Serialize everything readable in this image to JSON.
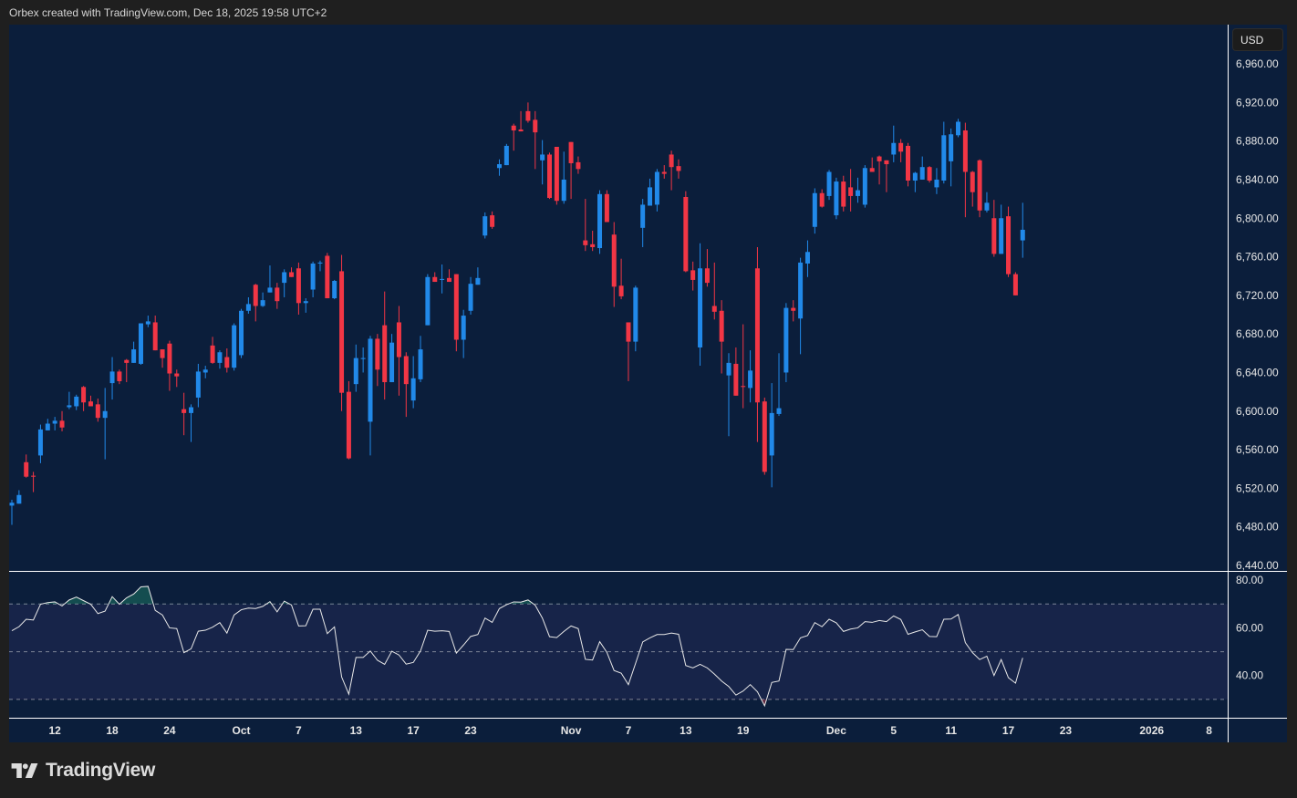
{
  "header": {
    "caption": "Orbex created with TradingView.com, Dec 18, 2025 19:58 UTC+2"
  },
  "currency_label": "USD",
  "logo": {
    "text": "TradingView"
  },
  "colors": {
    "up": "#2189e9",
    "down": "#f23645",
    "background": "#0b1e3b",
    "rsi_band": "#172449",
    "rsi_line": "#e8e8e8"
  },
  "chart_data": {
    "type": "candlestick",
    "title": "",
    "ylim": [
      6434.3,
      7000.7
    ],
    "price_axis": {
      "ticks": [
        "6,960.00",
        "6,920.00",
        "6,880.00",
        "6,840.00",
        "6,800.00",
        "6,760.00",
        "6,720.00",
        "6,680.00",
        "6,640.00",
        "6,600.00",
        "6,560.00",
        "6,520.00",
        "6,480.00",
        "6,440.00"
      ],
      "tick_values": [
        6960,
        6920,
        6880,
        6840,
        6800,
        6760,
        6720,
        6680,
        6640,
        6600,
        6560,
        6520,
        6480,
        6440
      ]
    },
    "time_axis": [
      {
        "label": "12",
        "bar": 7
      },
      {
        "label": "18",
        "bar": 15
      },
      {
        "label": "24",
        "bar": 23
      },
      {
        "label": "Oct",
        "bar": 33
      },
      {
        "label": "7",
        "bar": 41
      },
      {
        "label": "13",
        "bar": 49
      },
      {
        "label": "17",
        "bar": 57
      },
      {
        "label": "23",
        "bar": 65
      },
      {
        "label": "Nov",
        "bar": 79
      },
      {
        "label": "7",
        "bar": 87
      },
      {
        "label": "13",
        "bar": 95
      },
      {
        "label": "19",
        "bar": 103
      },
      {
        "label": "Dec",
        "bar": 116
      },
      {
        "label": "5",
        "bar": 124
      },
      {
        "label": "11",
        "bar": 132
      },
      {
        "label": "17",
        "bar": 140
      },
      {
        "label": "23",
        "bar": 148
      },
      {
        "label": "2026",
        "bar": 160
      },
      {
        "label": "8",
        "bar": 168
      }
    ],
    "ohlc_fields": [
      "open",
      "high",
      "low",
      "close"
    ],
    "candles": [
      [
        6502,
        6508,
        6482,
        6505
      ],
      [
        6504,
        6518,
        6504,
        6513
      ],
      [
        6547,
        6555,
        6531,
        6532
      ],
      [
        6533,
        6537,
        6516,
        6532
      ],
      [
        6554,
        6586,
        6546,
        6581
      ],
      [
        6580,
        6592,
        6580,
        6587
      ],
      [
        6587,
        6594,
        6580,
        6590
      ],
      [
        6590,
        6600,
        6579,
        6583
      ],
      [
        6604,
        6620,
        6602,
        6606
      ],
      [
        6605,
        6617,
        6601,
        6615
      ],
      [
        6625,
        6626,
        6600,
        6609
      ],
      [
        6610,
        6616,
        6605,
        6605
      ],
      [
        6607,
        6613,
        6589,
        6593
      ],
      [
        6593,
        6624,
        6550,
        6600
      ],
      [
        6629,
        6656,
        6612,
        6641
      ],
      [
        6641,
        6643,
        6628,
        6631
      ],
      [
        6653,
        6654,
        6630,
        6650
      ],
      [
        6650,
        6672,
        6650,
        6664
      ],
      [
        6649,
        6691,
        6648,
        6691
      ],
      [
        6690,
        6699,
        6687,
        6693
      ],
      [
        6692,
        6699,
        6663,
        6663
      ],
      [
        6664,
        6664,
        6645,
        6655
      ],
      [
        6670,
        6673,
        6621,
        6639
      ],
      [
        6639,
        6643,
        6625,
        6636
      ],
      [
        6602,
        6619,
        6575,
        6598
      ],
      [
        6598,
        6607,
        6568,
        6604
      ],
      [
        6614,
        6649,
        6604,
        6641
      ],
      [
        6640,
        6647,
        6634,
        6643
      ],
      [
        6668,
        6677,
        6649,
        6650
      ],
      [
        6650,
        6663,
        6644,
        6661
      ],
      [
        6656,
        6665,
        6640,
        6645
      ],
      [
        6645,
        6691,
        6642,
        6689
      ],
      [
        6658,
        6706,
        6655,
        6704
      ],
      [
        6704,
        6718,
        6701,
        6711
      ],
      [
        6731,
        6732,
        6693,
        6709
      ],
      [
        6709,
        6723,
        6708,
        6715
      ],
      [
        6723,
        6751,
        6723,
        6728
      ],
      [
        6728,
        6733,
        6706,
        6714
      ],
      [
        6733,
        6747,
        6718,
        6744
      ],
      [
        6744,
        6749,
        6739,
        6739
      ],
      [
        6748,
        6754,
        6700,
        6712
      ],
      [
        6712,
        6717,
        6702,
        6714
      ],
      [
        6726,
        6755,
        6718,
        6753
      ],
      [
        6753,
        6756,
        6745,
        6754
      ],
      [
        6761,
        6764,
        6717,
        6717
      ],
      [
        6717,
        6736,
        6716,
        6735
      ],
      [
        6745,
        6762,
        6600,
        6619
      ],
      [
        6620,
        6631,
        6550,
        6551
      ],
      [
        6628,
        6669,
        6620,
        6655
      ],
      [
        6654,
        6666,
        6640,
        6655
      ],
      [
        6589,
        6678,
        6554,
        6675
      ],
      [
        6675,
        6680,
        6626,
        6643
      ],
      [
        6689,
        6724,
        6612,
        6630
      ],
      [
        6630,
        6680,
        6630,
        6671
      ],
      [
        6692,
        6709,
        6616,
        6656
      ],
      [
        6657,
        6661,
        6594,
        6628
      ],
      [
        6611,
        6657,
        6603,
        6634
      ],
      [
        6633,
        6678,
        6630,
        6664
      ],
      [
        6689,
        6742,
        6689,
        6739
      ],
      [
        6739,
        6744,
        6734,
        6734
      ],
      [
        6736,
        6752,
        6722,
        6737
      ],
      [
        6738,
        6747,
        6734,
        6734
      ],
      [
        6742,
        6742,
        6662,
        6674
      ],
      [
        6674,
        6705,
        6655,
        6699
      ],
      [
        6704,
        6739,
        6700,
        6732
      ],
      [
        6731,
        6749,
        6731,
        6738
      ],
      [
        6782,
        6806,
        6779,
        6802
      ],
      [
        6803,
        6807,
        6789,
        6791
      ],
      [
        6852,
        6861,
        6844,
        6856
      ],
      [
        6855,
        6877,
        6855,
        6875
      ],
      [
        6896,
        6898,
        6870,
        6891
      ],
      [
        6892,
        6911,
        6890,
        6890
      ],
      [
        6911,
        6920,
        6899,
        6901
      ],
      [
        6902,
        6911,
        6851,
        6889
      ],
      [
        6860,
        6881,
        6835,
        6866
      ],
      [
        6866,
        6868,
        6820,
        6821
      ],
      [
        6874,
        6874,
        6814,
        6818
      ],
      [
        6818,
        6869,
        6815,
        6840
      ],
      [
        6879,
        6879,
        6820,
        6857
      ],
      [
        6858,
        6864,
        6846,
        6851
      ],
      [
        6777,
        6820,
        6766,
        6772
      ],
      [
        6773,
        6787,
        6766,
        6770
      ],
      [
        6769,
        6829,
        6763,
        6825
      ],
      [
        6825,
        6829,
        6796,
        6796
      ],
      [
        6783,
        6796,
        6708,
        6729
      ],
      [
        6730,
        6758,
        6716,
        6719
      ],
      [
        6692,
        6692,
        6631,
        6672
      ],
      [
        6672,
        6730,
        6662,
        6728
      ],
      [
        6790,
        6820,
        6770,
        6814
      ],
      [
        6813,
        6841,
        6813,
        6832
      ],
      [
        6814,
        6851,
        6807,
        6848
      ],
      [
        6848,
        6855,
        6841,
        6846
      ],
      [
        6866,
        6870,
        6829,
        6853
      ],
      [
        6854,
        6861,
        6841,
        6849
      ],
      [
        6822,
        6828,
        6744,
        6745
      ],
      [
        6746,
        6755,
        6725,
        6736
      ],
      [
        6666,
        6774,
        6647,
        6748
      ],
      [
        6748,
        6768,
        6729,
        6733
      ],
      [
        6709,
        6754,
        6695,
        6703
      ],
      [
        6704,
        6715,
        6639,
        6672
      ],
      [
        6637,
        6660,
        6574,
        6650
      ],
      [
        6649,
        6666,
        6616,
        6616
      ],
      [
        6626,
        6690,
        6603,
        6625
      ],
      [
        6624,
        6663,
        6609,
        6642
      ],
      [
        6748,
        6770,
        6568,
        6609
      ],
      [
        6610,
        6614,
        6534,
        6537
      ],
      [
        6554,
        6629,
        6521,
        6598
      ],
      [
        6597,
        6660,
        6595,
        6603
      ],
      [
        6640,
        6712,
        6630,
        6707
      ],
      [
        6707,
        6715,
        6693,
        6704
      ],
      [
        6696,
        6759,
        6659,
        6754
      ],
      [
        6753,
        6777,
        6739,
        6765
      ],
      [
        6791,
        6831,
        6784,
        6826
      ],
      [
        6826,
        6830,
        6811,
        6812
      ],
      [
        6823,
        6850,
        6819,
        6848
      ],
      [
        6803,
        6842,
        6799,
        6838
      ],
      [
        6838,
        6844,
        6807,
        6812
      ],
      [
        6832,
        6851,
        6807,
        6823
      ],
      [
        6823,
        6842,
        6816,
        6829
      ],
      [
        6814,
        6855,
        6811,
        6852
      ],
      [
        6852,
        6863,
        6848,
        6848
      ],
      [
        6864,
        6865,
        6835,
        6859
      ],
      [
        6860,
        6860,
        6827,
        6856
      ],
      [
        6866,
        6896,
        6858,
        6878
      ],
      [
        6878,
        6882,
        6858,
        6869
      ],
      [
        6875,
        6878,
        6833,
        6839
      ],
      [
        6839,
        6848,
        6827,
        6847
      ],
      [
        6840,
        6864,
        6840,
        6853
      ],
      [
        6853,
        6854,
        6837,
        6839
      ],
      [
        6832,
        6852,
        6825,
        6840
      ],
      [
        6839,
        6900,
        6836,
        6886
      ],
      [
        6859,
        6893,
        6833,
        6887
      ],
      [
        6886,
        6903,
        6884,
        6900
      ],
      [
        6891,
        6899,
        6801,
        6848
      ],
      [
        6848,
        6849,
        6812,
        6827
      ],
      [
        6860,
        6861,
        6801,
        6808
      ],
      [
        6808,
        6827,
        6806,
        6816
      ],
      [
        6800,
        6819,
        6760,
        6763
      ],
      [
        6763,
        6814,
        6763,
        6800
      ],
      [
        6802,
        6812,
        6739,
        6742
      ],
      [
        6742,
        6744,
        6720,
        6720
      ],
      [
        6777,
        6816,
        6759,
        6788
      ]
    ],
    "rsi": {
      "ylim": [
        22.3,
        83.5
      ],
      "ticks": [
        "80.00",
        "60.00",
        "40.00"
      ],
      "tick_values": [
        80,
        60,
        40
      ],
      "levels": [
        70,
        50,
        30
      ],
      "values": [
        58.8,
        60.5,
        63.6,
        63.3,
        69.9,
        70.6,
        70.9,
        69.2,
        71.7,
        72.9,
        71.4,
        69.9,
        66.0,
        67.0,
        73.1,
        69.9,
        72.6,
        74.2,
        77.2,
        77.4,
        67.3,
        65.4,
        60.0,
        59.7,
        49.6,
        51.2,
        58.6,
        59.0,
        60.3,
        62.2,
        57.8,
        65.4,
        67.6,
        68.3,
        68.1,
        69.0,
        71.0,
        66.7,
        71.2,
        69.6,
        60.8,
        60.9,
        67.8,
        67.8,
        57.6,
        60.4,
        39.4,
        32.2,
        47.6,
        47.6,
        50.3,
        46.4,
        44.7,
        50.2,
        48.6,
        44.8,
        45.5,
        50.3,
        59.0,
        58.6,
        58.8,
        58.5,
        49.4,
        52.8,
        56.4,
        57.2,
        64.1,
        62.3,
        68.1,
        69.7,
        70.9,
        70.8,
        71.7,
        69.5,
        64.1,
        56.3,
        55.9,
        58.5,
        60.8,
        59.7,
        46.8,
        46.5,
        54.2,
        49.7,
        42.1,
        41.0,
        36.2,
        45.1,
        54.1,
        55.8,
        57.2,
        57.2,
        57.8,
        57.3,
        44.2,
        43.2,
        44.7,
        43.2,
        40.6,
        37.7,
        35.4,
        31.8,
        33.5,
        36.2,
        33.2,
        27.3,
        37.1,
        37.7,
        51.0,
        50.9,
        55.8,
        56.8,
        62.2,
        60.5,
        63.6,
        62.1,
        58.5,
        59.5,
        60.0,
        62.6,
        62.3,
        63.1,
        62.6,
        65.0,
        63.5,
        57.3,
        58.3,
        59.2,
        56.4,
        56.3,
        63.6,
        63.7,
        65.6,
        53.8,
        49.6,
        46.7,
        48.1,
        40.0,
        46.7,
        39.1,
        36.8,
        47.4
      ]
    }
  }
}
